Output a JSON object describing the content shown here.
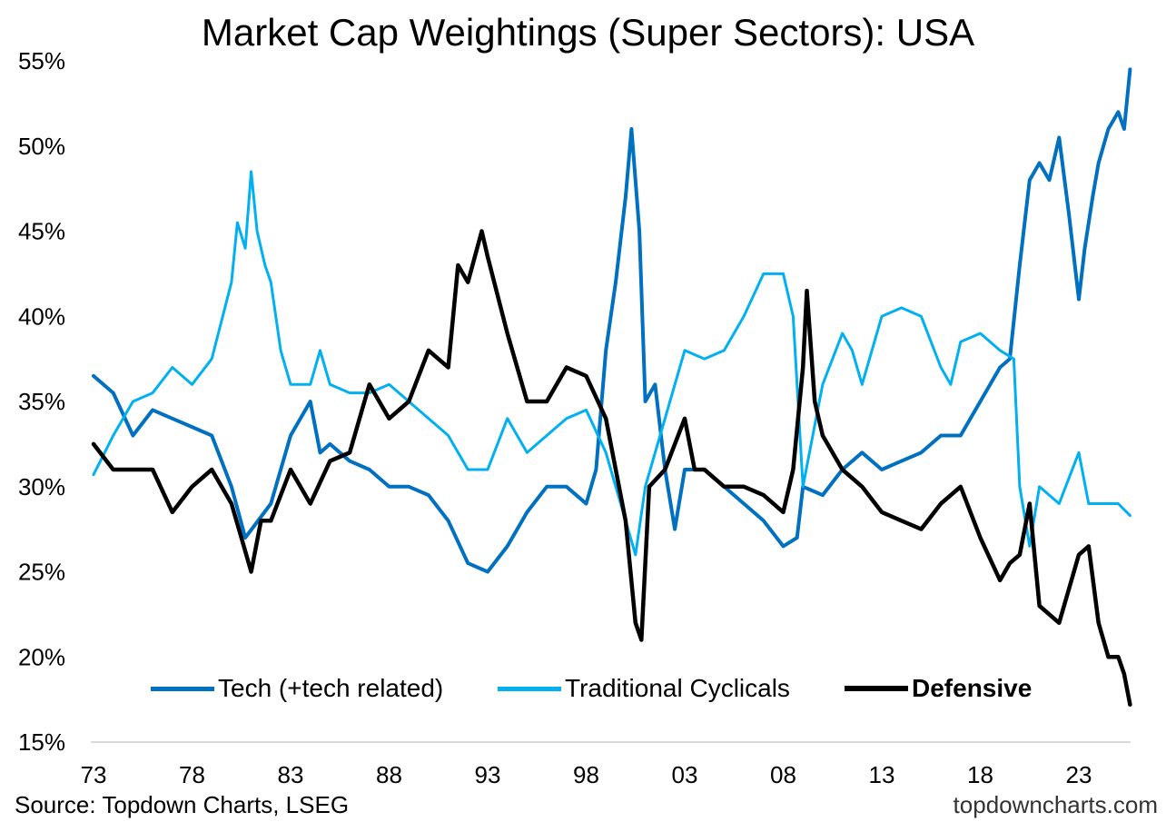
{
  "chart_data": {
    "type": "line",
    "title": "Market Cap Weightings (Super Sectors): USA",
    "xlabel": "",
    "ylabel": "",
    "ylim": [
      15,
      55
    ],
    "xlim": [
      1973,
      2025.6
    ],
    "yticks": [
      15,
      20,
      25,
      30,
      35,
      40,
      45,
      50,
      55
    ],
    "ytick_labels": [
      "15%",
      "20%",
      "25%",
      "30%",
      "35%",
      "40%",
      "45%",
      "50%",
      "55%"
    ],
    "xticks": [
      1973,
      1978,
      1983,
      1988,
      1993,
      1998,
      2003,
      2008,
      2013,
      2018,
      2023
    ],
    "xtick_labels": [
      "73",
      "78",
      "83",
      "88",
      "93",
      "98",
      "03",
      "08",
      "13",
      "18",
      "23"
    ],
    "grid": false,
    "legend_placement": "bottom-center",
    "series": [
      {
        "name": "Tech (+tech related)",
        "color": "#0070C0",
        "width": 4,
        "x": [
          1973,
          1974,
          1975,
          1976,
          1977,
          1978,
          1979,
          1980,
          1980.7,
          1982,
          1983,
          1984,
          1984.5,
          1985,
          1986,
          1987,
          1988,
          1989,
          1990,
          1991,
          1992,
          1993,
          1994,
          1995,
          1996,
          1997,
          1998,
          1998.5,
          1999,
          1999.5,
          2000,
          2000.3,
          2000.7,
          2001,
          2001.5,
          2002,
          2002.5,
          2003,
          2004,
          2005,
          2006,
          2007,
          2008,
          2008.7,
          2009,
          2010,
          2011,
          2012,
          2013,
          2014,
          2015,
          2016,
          2017,
          2018,
          2019,
          2019.5,
          2020,
          2020.5,
          2021,
          2021.5,
          2022,
          2022.5,
          2023,
          2023.3,
          2023.7,
          2024,
          2024.5,
          2025,
          2025.3,
          2025.6
        ],
        "y": [
          36.5,
          35.5,
          33,
          34.5,
          34,
          33.5,
          33,
          30,
          27,
          29,
          33,
          35,
          32,
          32.5,
          31.5,
          31,
          30,
          30,
          29.5,
          28,
          25.5,
          25,
          26.5,
          28.5,
          30,
          30,
          29,
          31,
          38,
          42,
          47,
          51,
          45,
          35,
          36,
          31,
          27.5,
          31,
          31,
          30,
          29,
          28,
          26.5,
          27,
          30,
          29.5,
          31,
          32,
          31,
          31.5,
          32,
          33,
          33,
          35,
          37,
          37.5,
          43,
          48,
          49,
          48,
          50.5,
          46,
          41,
          44,
          47,
          49,
          51,
          52,
          51,
          54.5
        ]
      },
      {
        "name": "Traditional Cyclicals",
        "color": "#00B0F0",
        "width": 3,
        "x": [
          1973,
          1974,
          1975,
          1976,
          1977,
          1978,
          1979,
          1980,
          1980.3,
          1980.7,
          1981,
          1981.3,
          1981.7,
          1982,
          1982.5,
          1983,
          1984,
          1984.5,
          1985,
          1986,
          1987,
          1988,
          1989,
          1990,
          1991,
          1992,
          1993,
          1994,
          1995,
          1996,
          1997,
          1998,
          1999,
          2000,
          2000.5,
          2001,
          2002,
          2003,
          2004,
          2005,
          2006,
          2007,
          2008,
          2008.5,
          2009,
          2009.5,
          2010,
          2011,
          2011.5,
          2012,
          2013,
          2014,
          2015,
          2016,
          2016.5,
          2017,
          2018,
          2019,
          2019.7,
          2020,
          2020.5,
          2021,
          2022,
          2022.5,
          2023,
          2023.5,
          2024,
          2025,
          2025.6
        ],
        "y": [
          30.7,
          33,
          35,
          35.5,
          37,
          36,
          37.5,
          42,
          45.5,
          44,
          48.5,
          45,
          43,
          42,
          38,
          36,
          36,
          38,
          36,
          35.5,
          35.5,
          36,
          35,
          34,
          33,
          31,
          31,
          34,
          32,
          33,
          34,
          34.5,
          32,
          28,
          26,
          30,
          34,
          38,
          37.5,
          38,
          40,
          42.5,
          42.5,
          40,
          30,
          33,
          36,
          39,
          38,
          36,
          40,
          40.5,
          40,
          37,
          36,
          38.5,
          39,
          38,
          37.5,
          30,
          26.5,
          30,
          29,
          30.5,
          32,
          29,
          29,
          29,
          28.3
        ]
      },
      {
        "name": "Defensive",
        "color": "#000000",
        "width": 4.5,
        "x": [
          1973,
          1974,
          1975,
          1976,
          1977,
          1978,
          1979,
          1980,
          1980.5,
          1981,
          1981.5,
          1982,
          1983,
          1984,
          1985,
          1986,
          1987,
          1988,
          1989,
          1990,
          1991,
          1991.5,
          1992,
          1992.7,
          1993,
          1994,
          1995,
          1996,
          1997,
          1998,
          1999,
          2000,
          2000.5,
          2000.8,
          2001.2,
          2002,
          2003,
          2003.5,
          2004,
          2005,
          2006,
          2007,
          2008,
          2008.5,
          2009,
          2009.2,
          2009.6,
          2010,
          2011,
          2012,
          2013,
          2014,
          2015,
          2016,
          2017,
          2018,
          2019,
          2019.5,
          2020,
          2020.5,
          2021,
          2022,
          2023,
          2023.5,
          2024,
          2024.5,
          2025,
          2025.3,
          2025.6
        ],
        "y": [
          32.5,
          31,
          31,
          31,
          28.5,
          30,
          31,
          29,
          27,
          25,
          28,
          28,
          31,
          29,
          31.5,
          32,
          36,
          34,
          35,
          38,
          37,
          43,
          42,
          45,
          43.5,
          39,
          35,
          35,
          37,
          36.5,
          34,
          28,
          22,
          21,
          30,
          31,
          34,
          31,
          31,
          30,
          30,
          29.5,
          28.5,
          31,
          37,
          41.5,
          35,
          33,
          31,
          30,
          28.5,
          28,
          27.5,
          29,
          30,
          27,
          24.5,
          25.5,
          26,
          29,
          23,
          22,
          26,
          26.5,
          22,
          20,
          20,
          19,
          17.2
        ]
      }
    ]
  },
  "footer": {
    "source": "Source: Topdown Charts, LSEG",
    "brand": "topdowncharts.com"
  }
}
